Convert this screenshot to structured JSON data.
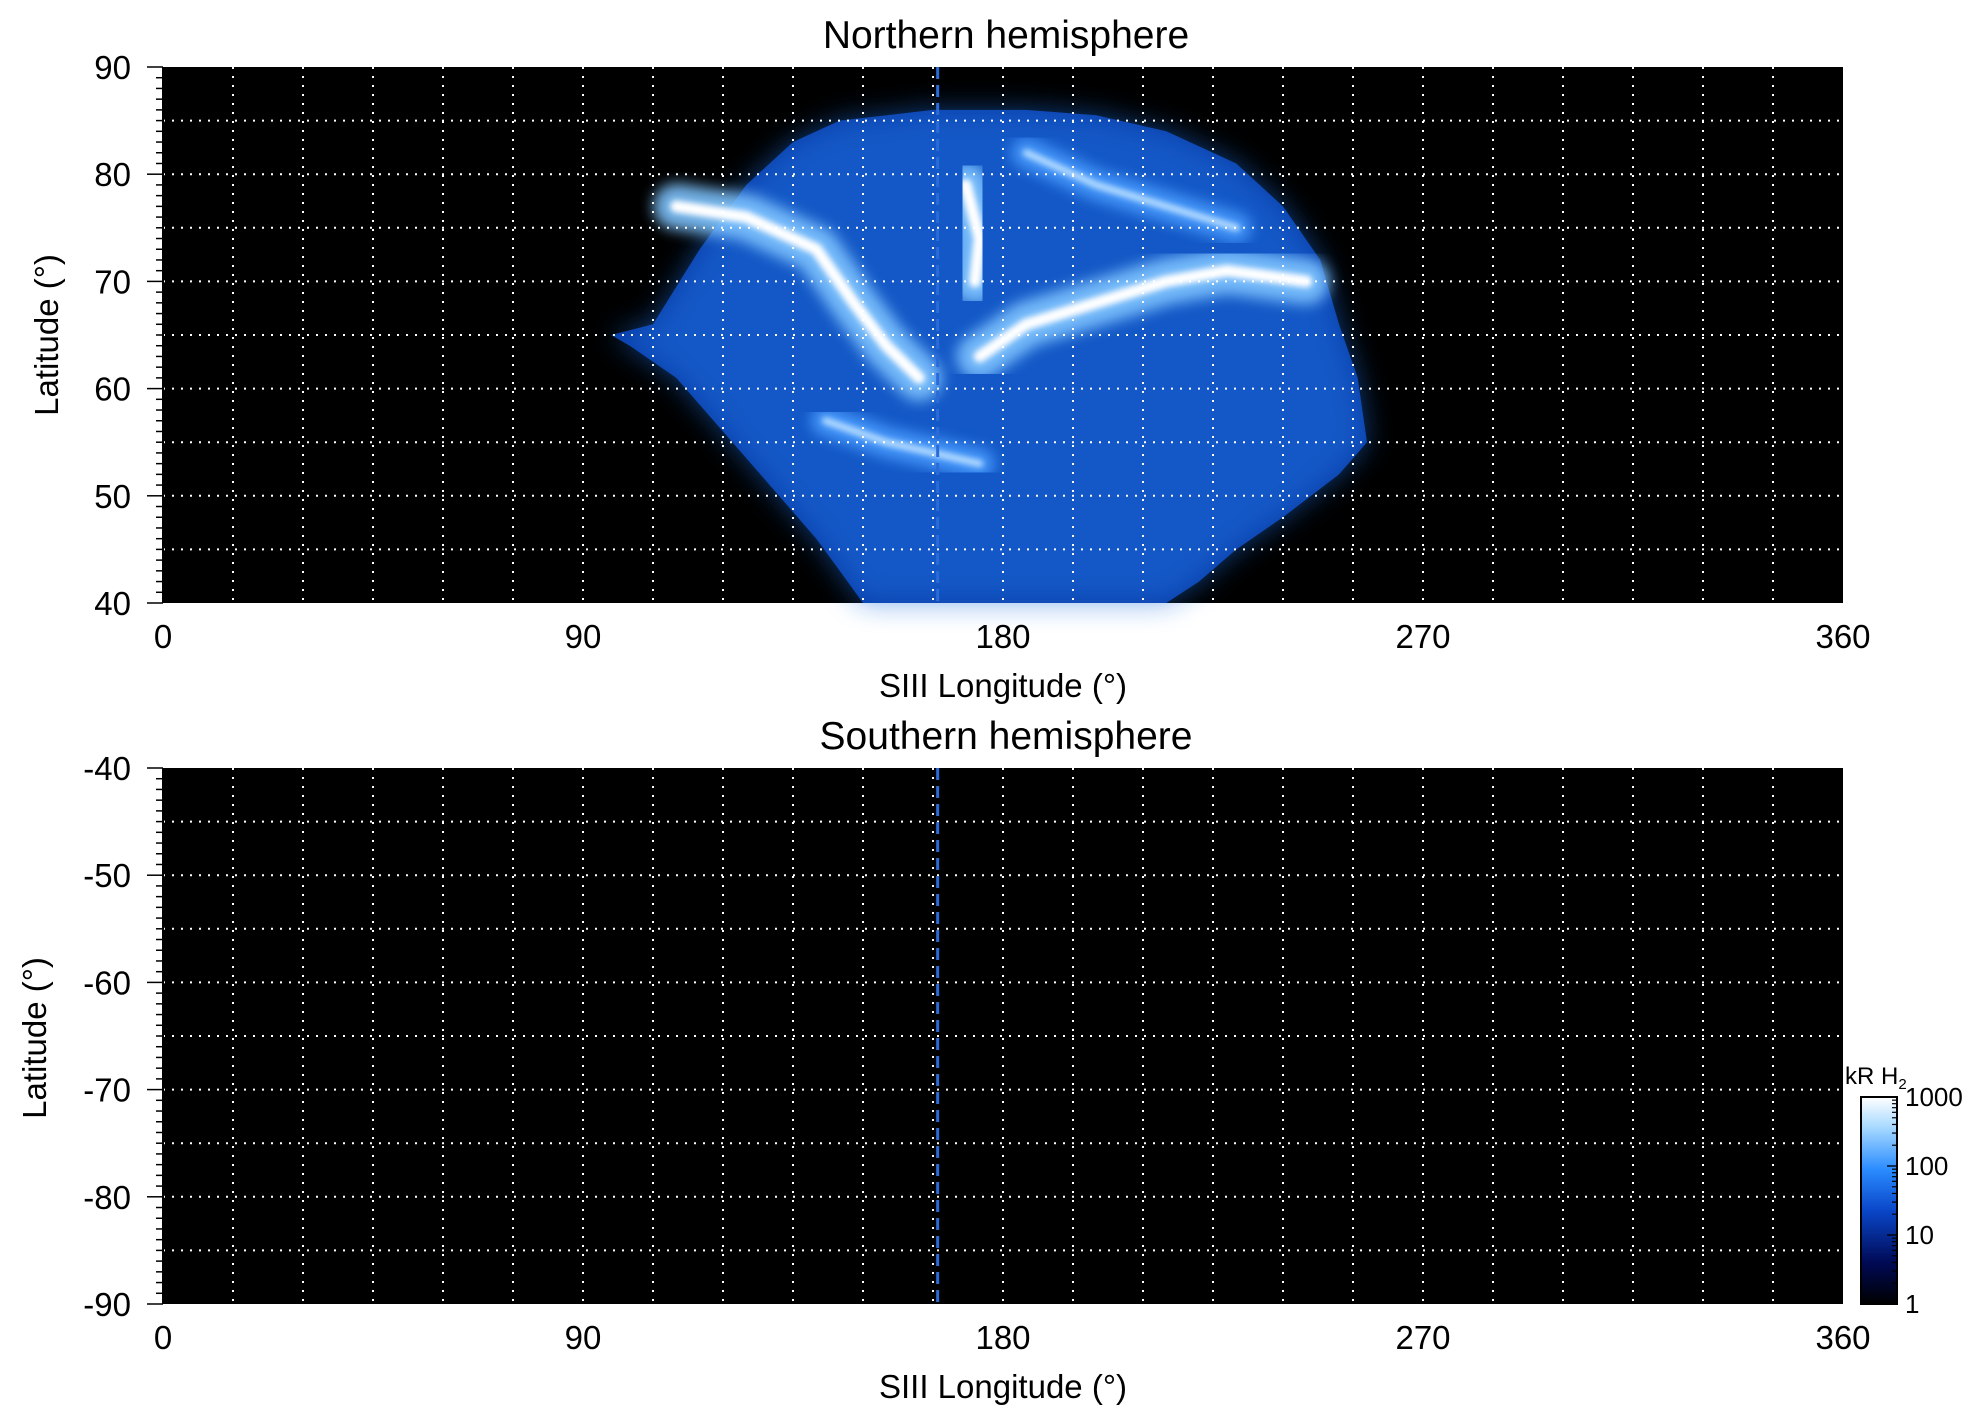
{
  "chart_data": [
    {
      "type": "heatmap",
      "title": "Northern hemisphere",
      "xlabel": "SIII Longitude (°)",
      "ylabel": "Latitude (°)",
      "xlim": [
        0,
        360
      ],
      "ylim": [
        40,
        90
      ],
      "xticks": [
        0,
        90,
        180,
        270,
        360
      ],
      "xtick_labels": [
        "0",
        "90",
        "180",
        "270",
        "360"
      ],
      "yticks": [
        40,
        50,
        60,
        70,
        80,
        90
      ],
      "ytick_labels": [
        "40",
        "50",
        "60",
        "70",
        "80",
        "90"
      ],
      "grid": true,
      "grid_x_step": 15,
      "grid_y_step": 5,
      "background": "#000000",
      "marker_line_longitude": 166,
      "coverage_outline": [
        [
          96,
          65
        ],
        [
          105,
          66
        ],
        [
          115,
          73
        ],
        [
          125,
          79
        ],
        [
          135,
          83
        ],
        [
          145,
          85
        ],
        [
          165,
          86
        ],
        [
          185,
          86
        ],
        [
          200,
          85.5
        ],
        [
          215,
          84
        ],
        [
          230,
          81
        ],
        [
          240,
          77
        ],
        [
          248,
          72
        ],
        [
          252,
          66
        ],
        [
          256,
          61
        ],
        [
          258,
          55
        ],
        [
          252,
          52
        ],
        [
          240,
          48
        ],
        [
          230,
          45
        ],
        [
          222,
          42
        ],
        [
          215,
          40
        ],
        [
          150,
          40
        ],
        [
          145,
          43
        ],
        [
          140,
          46
        ],
        [
          130,
          51
        ],
        [
          120,
          56
        ],
        [
          110,
          61
        ],
        [
          100,
          64
        ]
      ],
      "emission_features": [
        {
          "name": "main oval (dawn arc)",
          "points": [
            [
              110,
              77
            ],
            [
              125,
              76
            ],
            [
              140,
              73
            ],
            [
              148,
              68
            ],
            [
              155,
              64
            ],
            [
              162,
              61
            ]
          ],
          "brightness_kR": 1000
        },
        {
          "name": "polar spot",
          "points": [
            [
              172,
              79
            ],
            [
              175,
              74
            ],
            [
              174,
              70
            ]
          ],
          "brightness_kR": 1000
        },
        {
          "name": "main oval (dusk arc)",
          "points": [
            [
              175,
              63
            ],
            [
              185,
              66
            ],
            [
              200,
              68
            ],
            [
              215,
              70
            ],
            [
              228,
              71
            ],
            [
              245,
              70
            ]
          ],
          "brightness_kR": 800
        },
        {
          "name": "high-latitude arc",
          "points": [
            [
              185,
              82
            ],
            [
              200,
              79
            ],
            [
              215,
              77
            ],
            [
              230,
              75
            ]
          ],
          "brightness_kR": 400
        },
        {
          "name": "secondary arc",
          "points": [
            [
              142,
              57
            ],
            [
              155,
              55
            ],
            [
              165,
              54
            ],
            [
              175,
              53
            ]
          ],
          "brightness_kR": 150
        }
      ]
    },
    {
      "type": "heatmap",
      "title": "Southern hemisphere",
      "xlabel": "SIII Longitude (°)",
      "ylabel": "Latitude (°)",
      "xlim": [
        0,
        360
      ],
      "ylim": [
        -90,
        -40
      ],
      "xticks": [
        0,
        90,
        180,
        270,
        360
      ],
      "xtick_labels": [
        "0",
        "90",
        "180",
        "270",
        "360"
      ],
      "yticks": [
        -90,
        -80,
        -70,
        -60,
        -50,
        -40
      ],
      "ytick_labels": [
        "-90",
        "-80",
        "-70",
        "-60",
        "-50",
        "-40"
      ],
      "grid": true,
      "grid_x_step": 15,
      "grid_y_step": 5,
      "background": "#000000",
      "marker_line_longitude": 166,
      "emission_features": []
    }
  ],
  "colorbar": {
    "label": "kR H",
    "label_subscript": "2",
    "scale": "log",
    "range": [
      1,
      1000
    ],
    "ticks": [
      1,
      10,
      100,
      1000
    ],
    "tick_labels": [
      "1",
      "10",
      "100",
      "1000"
    ],
    "colors": [
      "#000000",
      "#000a55",
      "#0a46c8",
      "#2a8cff",
      "#a5d8ff",
      "#ffffff"
    ]
  },
  "colors": {
    "marker_line": "#2a6bd8",
    "grid": "#ffffff"
  }
}
